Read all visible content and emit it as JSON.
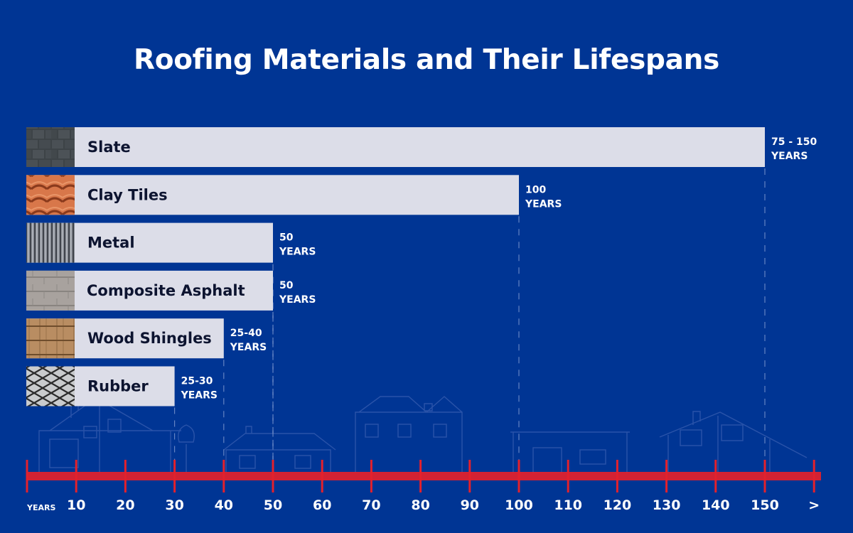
{
  "title": "Roofing Materials and Their Lifespans",
  "colors": {
    "background": "#003594",
    "bar": "#dcdde8",
    "bar_text": "#0d1430",
    "axis": "#e3212c",
    "text": "#ffffff",
    "gridline": "#7f98cf"
  },
  "chart_data": {
    "type": "bar",
    "orientation": "horizontal",
    "title": "Roofing Materials and Their Lifespans",
    "xlabel": "YEARS",
    "ylabel": "",
    "xlim": [
      0,
      160
    ],
    "grid": "dashed vertical lines at bar ends",
    "categories": [
      "Slate",
      "Clay Tiles",
      "Metal",
      "Composite Asphalt",
      "Wood Shingles",
      "Rubber"
    ],
    "values": [
      150,
      100,
      50,
      50,
      40,
      30
    ],
    "ranges": [
      [
        75,
        150
      ],
      [
        100,
        100
      ],
      [
        50,
        50
      ],
      [
        50,
        50
      ],
      [
        25,
        40
      ],
      [
        25,
        30
      ]
    ],
    "value_labels": [
      {
        "line1": "75 - 150",
        "line2": "YEARS"
      },
      {
        "line1": "100",
        "line2": "YEARS"
      },
      {
        "line1": "50",
        "line2": "YEARS"
      },
      {
        "line1": "50",
        "line2": "YEARS"
      },
      {
        "line1": "25-40",
        "line2": "YEARS"
      },
      {
        "line1": "25-30",
        "line2": "YEARS"
      }
    ],
    "textures": [
      "slate-texture",
      "clay-tile-texture",
      "metal-texture",
      "asphalt-texture",
      "wood-shingle-texture",
      "rubber-mesh-texture"
    ],
    "x_ticks": [
      10,
      20,
      30,
      40,
      50,
      60,
      70,
      80,
      90,
      100,
      110,
      120,
      130,
      140,
      150
    ],
    "x_tick_labels": [
      "10",
      "20",
      "30",
      "40",
      "50",
      "60",
      "70",
      "80",
      "90",
      "100",
      "110",
      "120",
      "130",
      "140",
      "150"
    ],
    "x_end_label": ">",
    "axis_unit_label": "YEARS"
  }
}
